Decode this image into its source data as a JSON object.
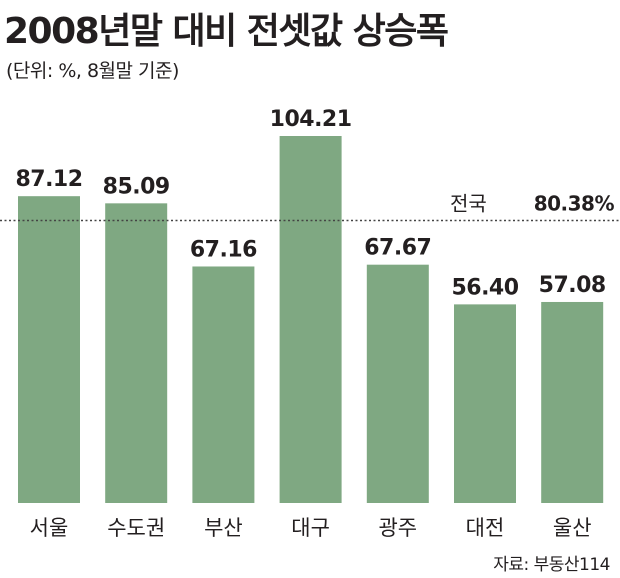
{
  "header": {
    "title": "2008년말 대비 전셋값 상승폭",
    "subtitle": "(단위: %, 8월말 기준)"
  },
  "footer": {
    "source": "자료: 부동산114"
  },
  "colors": {
    "bar": "#7fa882",
    "text": "#231f20",
    "reference_line": "#444444"
  },
  "chart_data": {
    "type": "bar",
    "title": "2008년말 대비 전셋값 상승폭",
    "unit": "%",
    "categories": [
      "서울",
      "수도권",
      "부산",
      "대구",
      "광주",
      "대전",
      "울산"
    ],
    "values": [
      87.12,
      85.09,
      67.16,
      104.21,
      67.67,
      56.4,
      57.08
    ],
    "value_labels": [
      "87.12",
      "85.09",
      "67.16",
      "104.21",
      "67.67",
      "56.40",
      "57.08"
    ],
    "ylim": [
      0,
      104.21
    ],
    "grid": false,
    "legend": "none",
    "reference_line": {
      "label": "전국",
      "value": 80.38,
      "value_label": "80.38%",
      "style": "dotted"
    }
  }
}
